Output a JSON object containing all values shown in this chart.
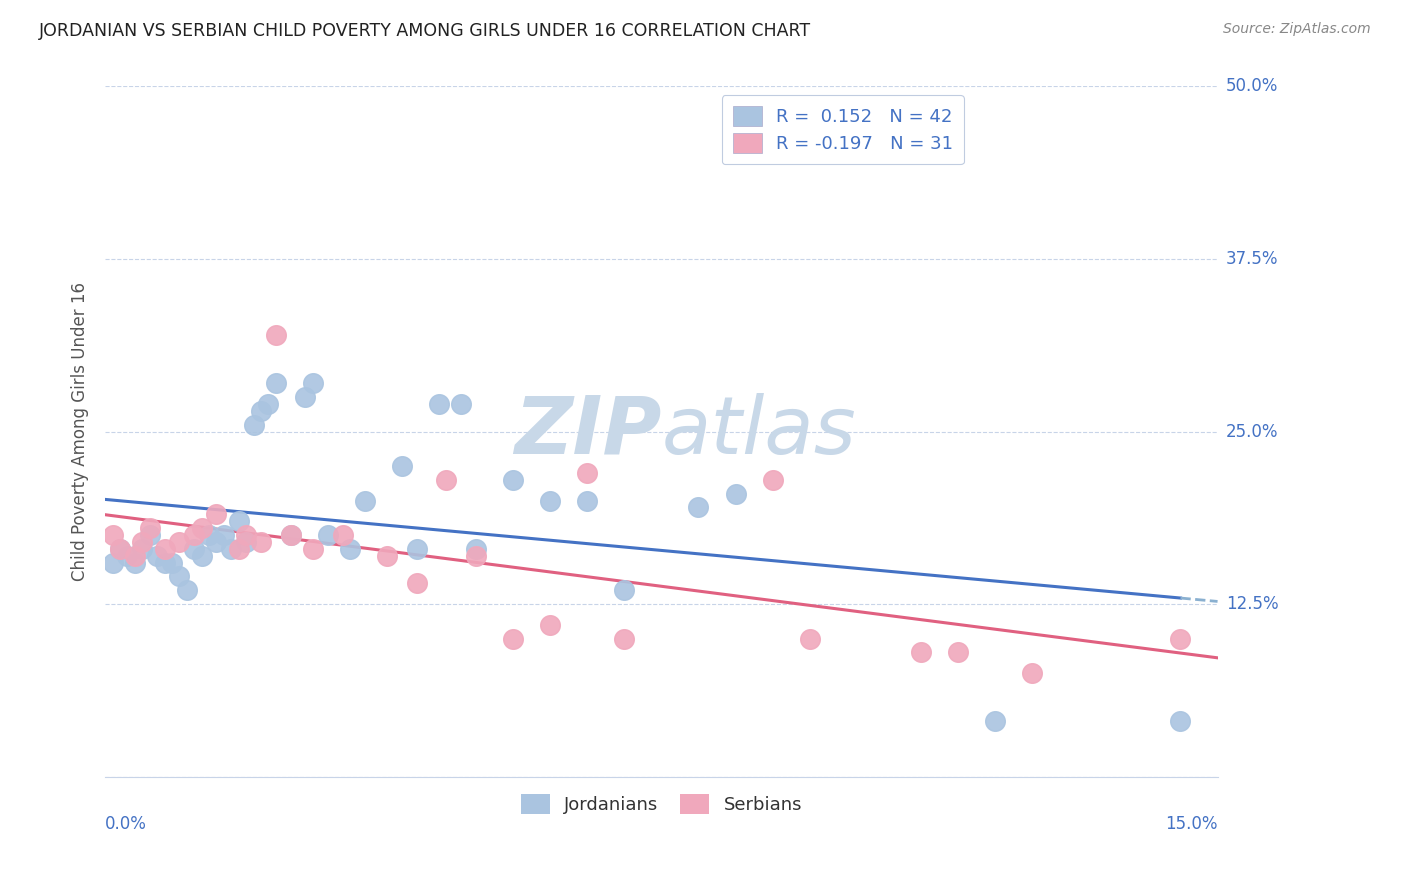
{
  "title": "JORDANIAN VS SERBIAN CHILD POVERTY AMONG GIRLS UNDER 16 CORRELATION CHART",
  "source": "Source: ZipAtlas.com",
  "ylabel": "Child Poverty Among Girls Under 16",
  "xlim": [
    0.0,
    0.15
  ],
  "ylim": [
    0.0,
    0.5
  ],
  "yticks": [
    0.0,
    0.125,
    0.25,
    0.375,
    0.5
  ],
  "ytick_labels": [
    "",
    "12.5%",
    "25.0%",
    "37.5%",
    "50.0%"
  ],
  "xtick_labels": [
    "0.0%",
    "",
    "",
    "",
    "",
    "15.0%"
  ],
  "xticks": [
    0.0,
    0.03,
    0.06,
    0.09,
    0.12,
    0.15
  ],
  "jordan_R": 0.152,
  "jordan_N": 42,
  "serbia_R": -0.197,
  "serbia_N": 31,
  "jordan_color": "#aac4e0",
  "serbia_color": "#f0a8bc",
  "jordan_line_color": "#4472c4",
  "serbia_line_color": "#e06080",
  "trend_line_dash_color": "#8ab0d0",
  "background_color": "#ffffff",
  "grid_color": "#c8d4e8",
  "watermark_color": "#c8d8e8",
  "jordan_x": [
    0.001,
    0.002,
    0.003,
    0.004,
    0.005,
    0.006,
    0.007,
    0.008,
    0.009,
    0.01,
    0.011,
    0.012,
    0.013,
    0.014,
    0.015,
    0.016,
    0.017,
    0.018,
    0.019,
    0.02,
    0.021,
    0.022,
    0.023,
    0.025,
    0.027,
    0.028,
    0.03,
    0.033,
    0.035,
    0.04,
    0.042,
    0.045,
    0.048,
    0.05,
    0.055,
    0.06,
    0.065,
    0.07,
    0.08,
    0.085,
    0.12,
    0.145
  ],
  "jordan_y": [
    0.155,
    0.165,
    0.16,
    0.155,
    0.165,
    0.175,
    0.16,
    0.155,
    0.155,
    0.145,
    0.135,
    0.165,
    0.16,
    0.175,
    0.17,
    0.175,
    0.165,
    0.185,
    0.17,
    0.255,
    0.265,
    0.27,
    0.285,
    0.175,
    0.275,
    0.285,
    0.175,
    0.165,
    0.2,
    0.225,
    0.165,
    0.27,
    0.27,
    0.165,
    0.215,
    0.2,
    0.2,
    0.135,
    0.195,
    0.205,
    0.04,
    0.04
  ],
  "serbia_x": [
    0.001,
    0.002,
    0.004,
    0.005,
    0.006,
    0.008,
    0.01,
    0.012,
    0.013,
    0.015,
    0.018,
    0.019,
    0.021,
    0.023,
    0.025,
    0.028,
    0.032,
    0.038,
    0.042,
    0.046,
    0.05,
    0.055,
    0.06,
    0.065,
    0.07,
    0.09,
    0.095,
    0.11,
    0.115,
    0.125,
    0.145
  ],
  "serbia_y": [
    0.175,
    0.165,
    0.16,
    0.17,
    0.18,
    0.165,
    0.17,
    0.175,
    0.18,
    0.19,
    0.165,
    0.175,
    0.17,
    0.32,
    0.175,
    0.165,
    0.175,
    0.16,
    0.14,
    0.215,
    0.16,
    0.1,
    0.11,
    0.22,
    0.1,
    0.215,
    0.1,
    0.09,
    0.09,
    0.075,
    0.1
  ]
}
